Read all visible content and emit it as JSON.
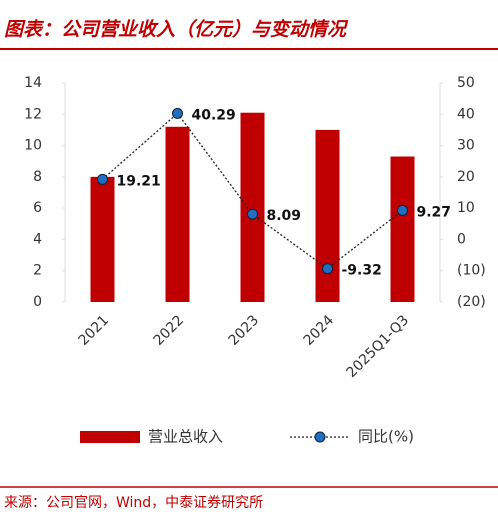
{
  "chart_data": {
    "type": "bar_line",
    "title": "图表：公司营业收入（亿元）与变动情况",
    "source": "来源：公司官网，Wind，中泰证券研究所",
    "categories": [
      "2021",
      "2022",
      "2023",
      "2024",
      "2025Q1-Q3"
    ],
    "series": [
      {
        "name": "营业总收入",
        "type": "bar",
        "color": "#c00000",
        "values": [
          8.0,
          11.2,
          12.1,
          11.0,
          9.3
        ]
      },
      {
        "name": "同比(%)",
        "type": "line",
        "axis": "y2",
        "color": "#1f6fc5",
        "values": [
          19.21,
          40.29,
          8.09,
          -9.32,
          9.27
        ]
      }
    ],
    "ylim": [
      0,
      14
    ],
    "yticks": [
      0,
      2,
      4,
      6,
      8,
      10,
      12,
      14
    ],
    "y2lim": [
      -20,
      50
    ],
    "y2ticks": [
      {
        "value": -20,
        "label": "(20)"
      },
      {
        "value": -10,
        "label": "(10)"
      },
      0,
      10,
      20,
      30,
      40,
      50
    ],
    "negative_color": "#c00000",
    "grid": false
  }
}
